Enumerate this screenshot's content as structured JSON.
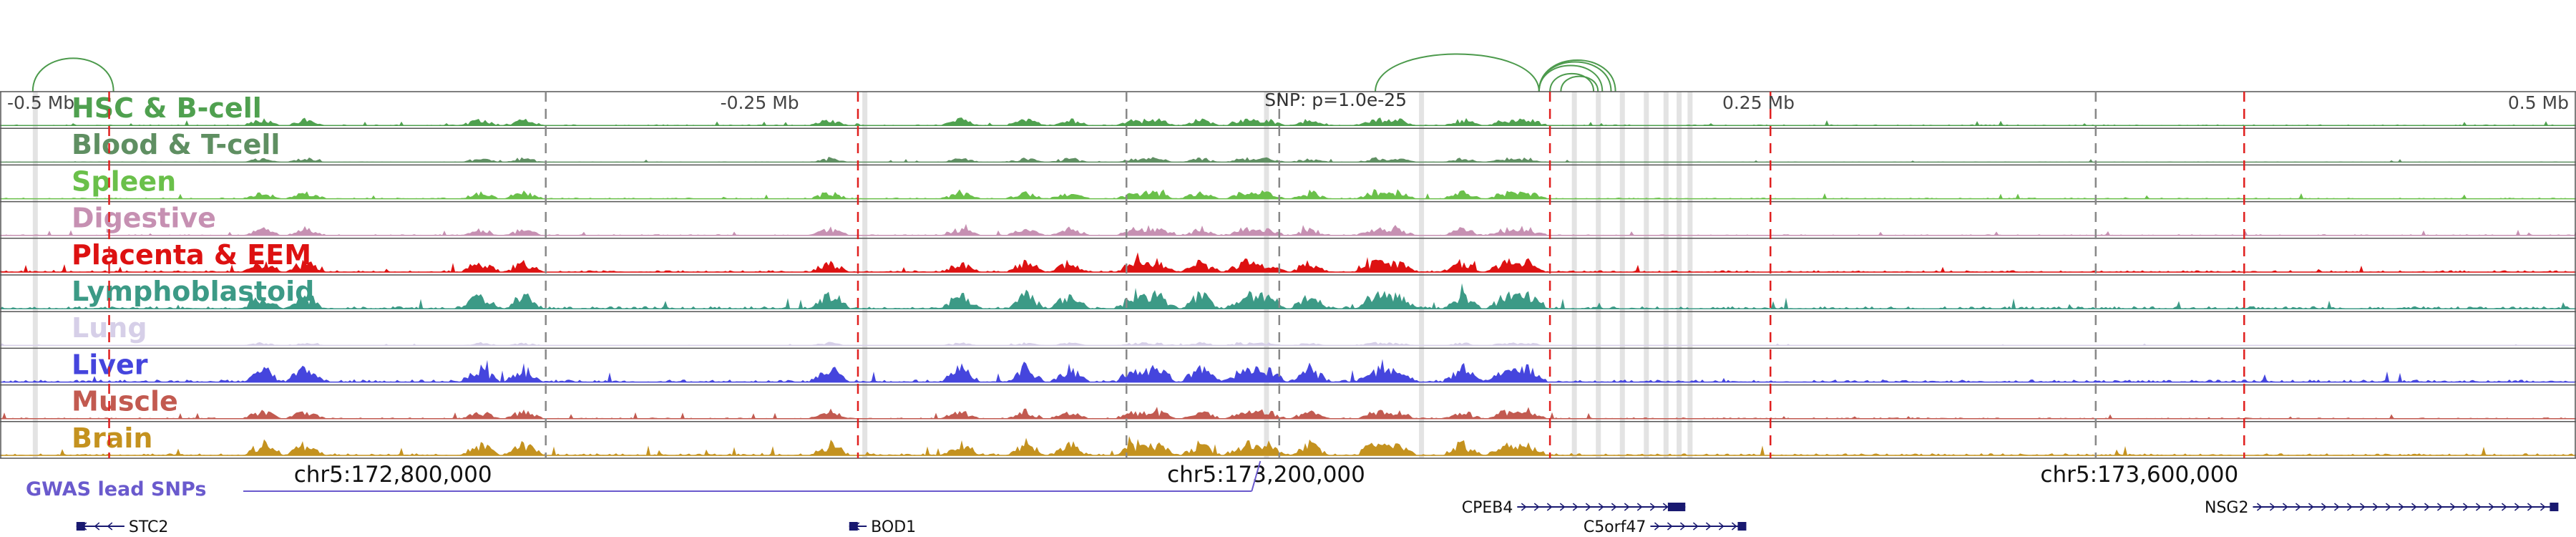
{
  "browser": {
    "region": {
      "chrom": "chr5",
      "start": 172620000,
      "end": 173800000
    },
    "center": 173196000,
    "distance_ticks": [
      {
        "label": "-0.5 Mb",
        "offset": -500000
      },
      {
        "label": "-0.25 Mb",
        "offset": -250000
      },
      {
        "label": "0.25 Mb",
        "offset": 250000
      },
      {
        "label": "0.5 Mb",
        "offset": 500000
      }
    ],
    "snp_annotation": "SNP: p=1.0e-25",
    "coordinate_labels": [
      {
        "label": "chr5:172,800,000",
        "pos": 172800000
      },
      {
        "label": "chr5:173,200,000",
        "pos": 173200000
      },
      {
        "label": "chr5:173,600,000",
        "pos": 173600000
      }
    ],
    "gwas_label": "GWAS lead SNPs",
    "gwas_color": "#6a5acd",
    "loops": [
      {
        "start": 172635000,
        "end": 172672000
      },
      {
        "start": 173250000,
        "end": 173325000
      },
      {
        "start": 173325000,
        "end": 173360000
      },
      {
        "start": 173325000,
        "end": 173358000
      },
      {
        "start": 173325000,
        "end": 173354000
      },
      {
        "start": 173330000,
        "end": 173350000
      },
      {
        "start": 173335000,
        "end": 173352000
      }
    ],
    "loop_color": "#4c9a4c",
    "highlight_lines": [
      172670000,
      173013000,
      173330000,
      173431000,
      173648000
    ],
    "highlight_color": "#e0201f",
    "dashed_gray_lines": [
      172870000,
      173136000,
      173206000,
      173580000
    ],
    "gray_bands": [
      172636000,
      173016000,
      173200000,
      173271000,
      173341000,
      173352000,
      173363000,
      173374000,
      173383000,
      173389000,
      173394000
    ],
    "tracks": [
      {
        "name": "HSC & B-cell",
        "color": "#4fa04f",
        "label_color": "#4fa04f",
        "scale": 0.35
      },
      {
        "name": "Blood & T-cell",
        "color": "#5f8f62",
        "label_color": "#5f8f62",
        "scale": 0.22
      },
      {
        "name": "Spleen",
        "color": "#6ac04a",
        "label_color": "#6ac04a",
        "scale": 0.4
      },
      {
        "name": "Digestive",
        "color": "#c690b2",
        "label_color": "#c690b2",
        "scale": 0.4
      },
      {
        "name": "Placenta & EEM",
        "color": "#dd1111",
        "label_color": "#dd1111",
        "scale": 0.6
      },
      {
        "name": "Lymphoblastoid",
        "color": "#3c9a86",
        "label_color": "#3c9a86",
        "scale": 0.85
      },
      {
        "name": "Lung",
        "color": "#d6cfe8",
        "label_color": "#d6cfe8",
        "scale": 0.15
      },
      {
        "name": "Liver",
        "color": "#4545dd",
        "label_color": "#4545dd",
        "scale": 0.85
      },
      {
        "name": "Muscle",
        "color": "#c25a50",
        "label_color": "#c25a50",
        "scale": 0.45
      },
      {
        "name": "Brain",
        "color": "#c4921f",
        "label_color": "#c4921f",
        "scale": 0.7
      }
    ],
    "genes": [
      {
        "name": "STC2",
        "start": 172655000,
        "end": 172677000,
        "strand": "-",
        "row": 0,
        "exon_start": 172655000,
        "exon_end": 172658000,
        "label_side": "right"
      },
      {
        "name": "BOD1",
        "start": 173009000,
        "end": 173017000,
        "strand": "-",
        "row": 0,
        "exon_start": 173009000,
        "exon_end": 173010000,
        "label_side": "right"
      },
      {
        "name": "CPEB4",
        "start": 173315000,
        "end": 173392000,
        "strand": "+",
        "row": -1,
        "exon_start": 173384000,
        "exon_end": 173392000,
        "label_side": "left"
      },
      {
        "name": "C5orf47",
        "start": 173376000,
        "end": 173419000,
        "strand": "+",
        "row": 0,
        "exon_start": 173416000,
        "exon_end": 173419000,
        "label_side": "left"
      },
      {
        "name": "NSG2",
        "start": 173652000,
        "end": 173789000,
        "strand": "+",
        "row": -1,
        "exon_start": 173788000,
        "exon_end": 173789000,
        "label_side": "left"
      }
    ],
    "gene_color": "#191970"
  }
}
